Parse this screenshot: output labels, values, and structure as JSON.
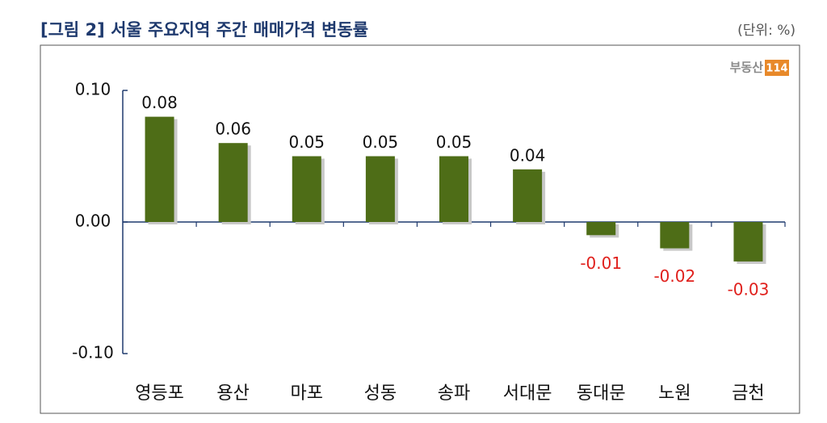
{
  "chart_data": {
    "type": "bar",
    "title": "[그림 2] 서울 주요지역 주간 매매가격 변동률",
    "unit_note": "(단위: %)",
    "logo_text": "부동산",
    "logo_badge": "114",
    "categories": [
      "영등포",
      "용산",
      "마포",
      "성동",
      "송파",
      "서대문",
      "동대문",
      "노원",
      "금천"
    ],
    "values": [
      0.08,
      0.06,
      0.05,
      0.05,
      0.05,
      0.04,
      -0.01,
      -0.02,
      -0.03
    ],
    "color": "#4e6d17",
    "negative_label_color": "#e0201c",
    "ylim": [
      -0.1,
      0.1
    ],
    "yticks": [
      {
        "value": 0.1,
        "label": "0.10"
      },
      {
        "value": 0,
        "label": "0.00"
      },
      {
        "value": -0.1,
        "label": "-0.10"
      }
    ]
  }
}
